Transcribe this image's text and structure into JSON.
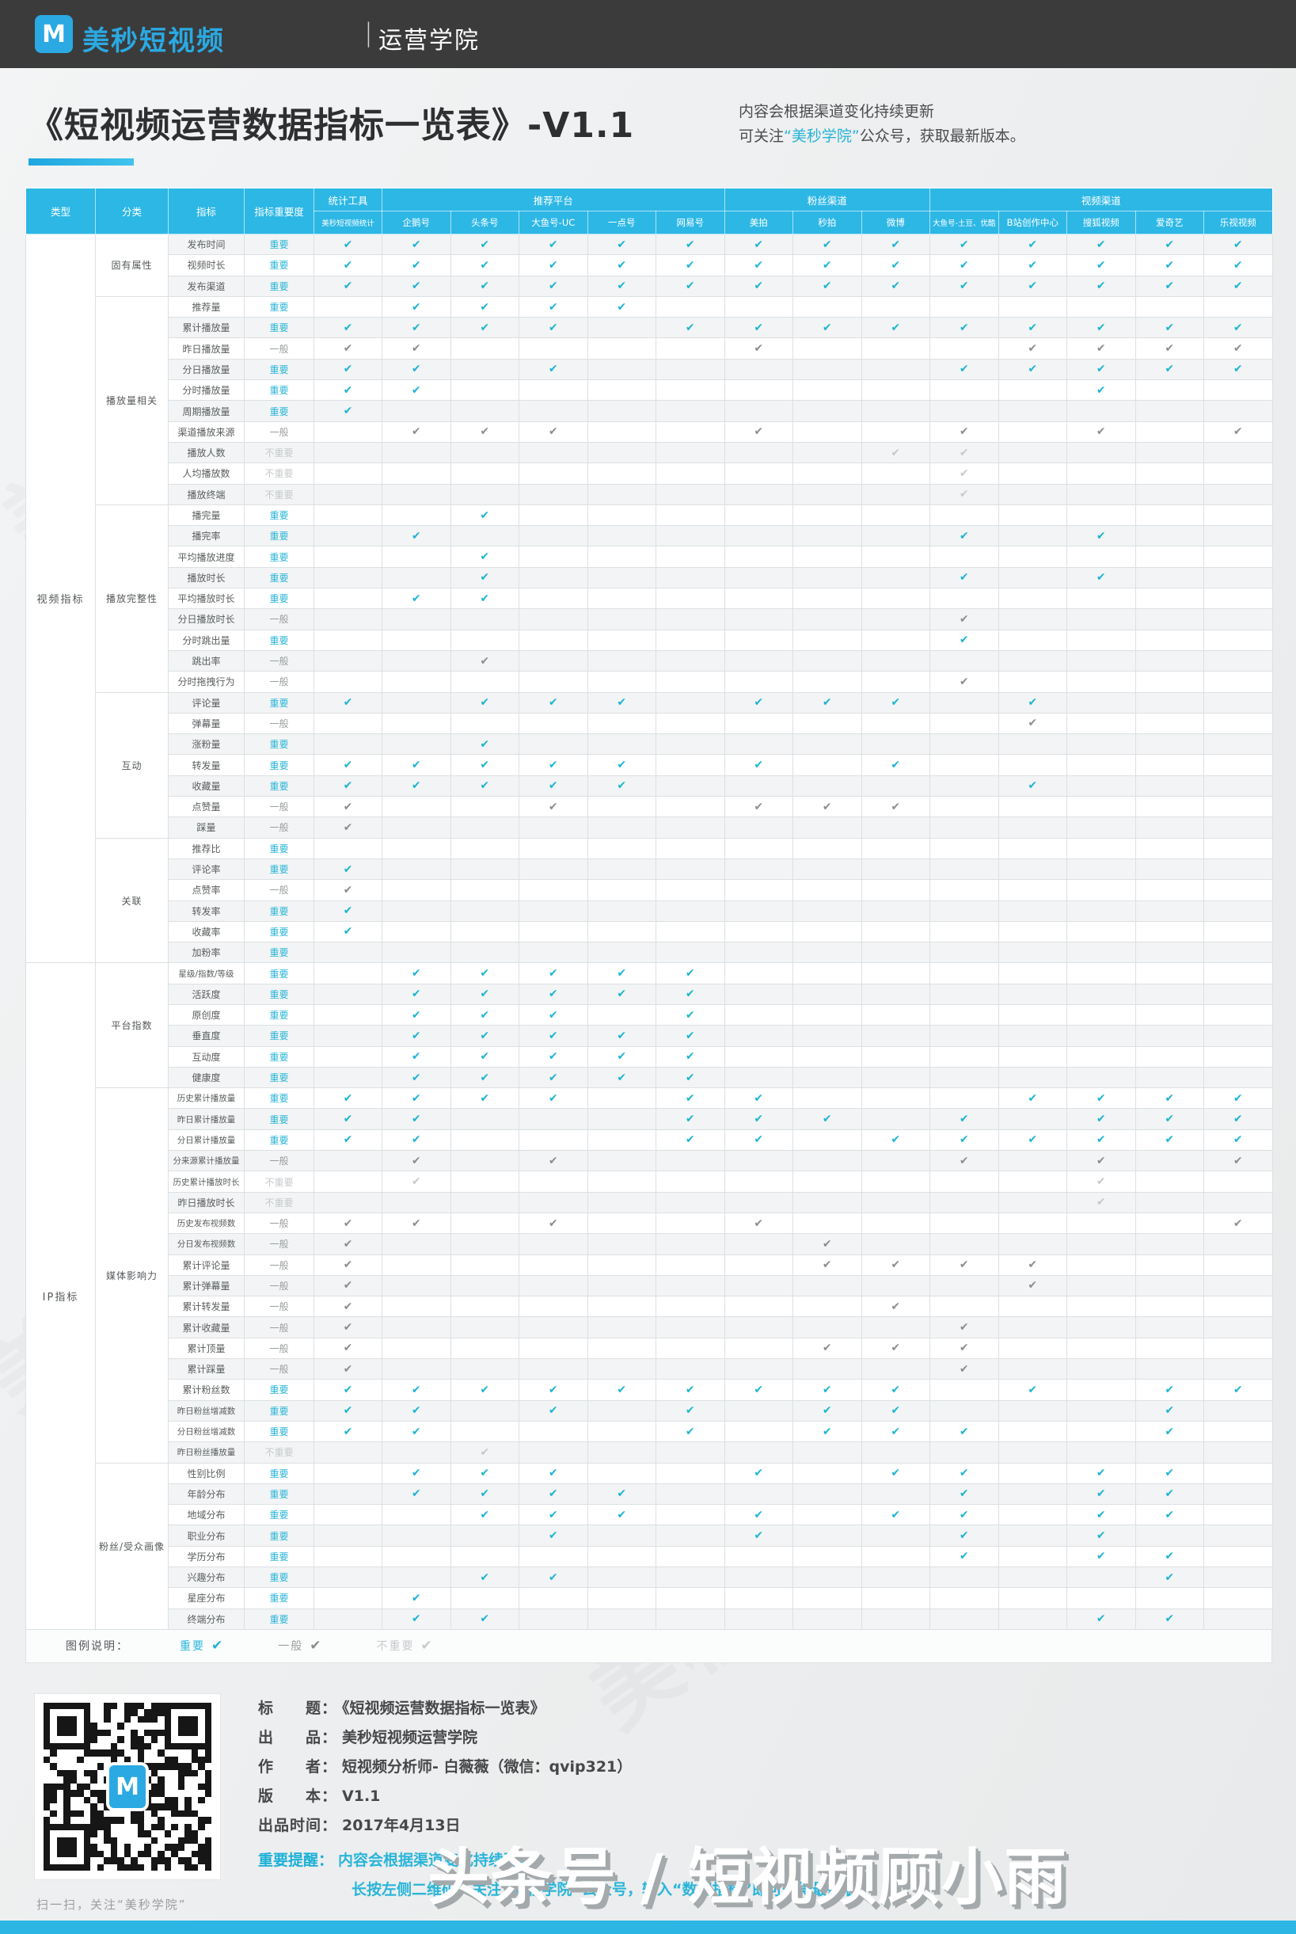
{
  "topbar": {
    "logo_letter": "M",
    "brand": "美秒短视频",
    "separator": "|",
    "suffix": "运营学院"
  },
  "header": {
    "title": "《短视频运营数据指标一览表》-V1.1",
    "note_line1": "内容会根据渠道变化持续更新",
    "note_line2_prefix": "可关注",
    "note_line2_brand": "“美秒学院”",
    "note_line2_suffix": "公众号，获取最新版本。"
  },
  "table": {
    "corner_headers": [
      "类型",
      "分类",
      "指标",
      "指标重要度"
    ],
    "groups": [
      {
        "label": "统计工具",
        "cols": [
          "美秒短视频统计"
        ]
      },
      {
        "label": "推荐平台",
        "cols": [
          "企鹅号",
          "头条号",
          "大鱼号-UC",
          "一点号",
          "网易号"
        ]
      },
      {
        "label": "粉丝渠道",
        "cols": [
          "美拍",
          "秒拍",
          "微博"
        ]
      },
      {
        "label": "视频渠道",
        "cols": [
          "大鱼号-土豆、优酷",
          "B站创作中心",
          "搜狐视频",
          "爱奇艺",
          "乐视视频"
        ]
      }
    ],
    "types": [
      {
        "label": "视频指标",
        "categories": [
          {
            "label": "固有属性",
            "rows": [
              {
                "name": "发布时间",
                "importance": "important",
                "checks": [
                  0,
                  1,
                  2,
                  3,
                  4,
                  5,
                  6,
                  7,
                  8,
                  9,
                  10,
                  11,
                  12,
                  13
                ]
              },
              {
                "name": "视频时长",
                "importance": "important",
                "checks": [
                  0,
                  1,
                  2,
                  3,
                  4,
                  5,
                  6,
                  7,
                  8,
                  9,
                  10,
                  11,
                  12,
                  13
                ]
              },
              {
                "name": "发布渠道",
                "importance": "important",
                "checks": [
                  0,
                  1,
                  2,
                  3,
                  4,
                  5,
                  6,
                  7,
                  8,
                  9,
                  10,
                  11,
                  12,
                  13
                ]
              }
            ]
          },
          {
            "label": "播放量相关",
            "rows": [
              {
                "name": "推荐量",
                "importance": "important",
                "checks": [
                  1,
                  2,
                  3,
                  4
                ]
              },
              {
                "name": "累计播放量",
                "importance": "important",
                "checks": [
                  0,
                  1,
                  2,
                  3,
                  5,
                  6,
                  7,
                  8,
                  9,
                  10,
                  11,
                  12,
                  13
                ]
              },
              {
                "name": "昨日播放量",
                "importance": "normal",
                "checks": [
                  0,
                  1,
                  6,
                  10,
                  11,
                  12,
                  13
                ]
              },
              {
                "name": "分日播放量",
                "importance": "important",
                "checks": [
                  0,
                  1,
                  3,
                  9,
                  10,
                  11,
                  12,
                  13
                ]
              },
              {
                "name": "分时播放量",
                "importance": "important",
                "checks": [
                  0,
                  1,
                  11
                ]
              },
              {
                "name": "周期播放量",
                "importance": "important",
                "checks": [
                  0
                ]
              },
              {
                "name": "渠道播放来源",
                "importance": "normal",
                "checks": [
                  1,
                  2,
                  3,
                  6,
                  9,
                  11,
                  13
                ]
              },
              {
                "name": "播放人数",
                "importance": "unimportant",
                "checks": [
                  8,
                  9
                ]
              },
              {
                "name": "人均播放数",
                "importance": "unimportant",
                "checks": [
                  9
                ]
              },
              {
                "name": "播放终端",
                "importance": "unimportant",
                "checks": [
                  9
                ]
              }
            ]
          },
          {
            "label": "播放完整性",
            "rows": [
              {
                "name": "播完量",
                "importance": "important",
                "checks": [
                  2
                ]
              },
              {
                "name": "播完率",
                "importance": "important",
                "checks": [
                  1,
                  9,
                  11
                ]
              },
              {
                "name": "平均播放进度",
                "importance": "important",
                "checks": [
                  2
                ]
              },
              {
                "name": "播放时长",
                "importance": "important",
                "checks": [
                  2,
                  9,
                  11
                ]
              },
              {
                "name": "平均播放时长",
                "importance": "important",
                "checks": [
                  1,
                  2
                ]
              },
              {
                "name": "分日播放时长",
                "importance": "normal",
                "checks": [
                  9
                ]
              },
              {
                "name": "分时跳出量",
                "importance": "important",
                "checks": [
                  9
                ]
              },
              {
                "name": "跳出率",
                "importance": "normal",
                "checks": [
                  2
                ]
              },
              {
                "name": "分时拖拽行为",
                "importance": "normal",
                "checks": [
                  9
                ]
              }
            ]
          },
          {
            "label": "互动",
            "rows": [
              {
                "name": "评论量",
                "importance": "important",
                "checks": [
                  0,
                  2,
                  3,
                  4,
                  6,
                  7,
                  8,
                  10
                ]
              },
              {
                "name": "弹幕量",
                "importance": "normal",
                "checks": [
                  10
                ]
              },
              {
                "name": "涨粉量",
                "importance": "important",
                "checks": [
                  2
                ]
              },
              {
                "name": "转发量",
                "importance": "important",
                "checks": [
                  0,
                  1,
                  2,
                  3,
                  4,
                  6,
                  8
                ]
              },
              {
                "name": "收藏量",
                "importance": "important",
                "checks": [
                  0,
                  1,
                  2,
                  3,
                  4,
                  10
                ]
              },
              {
                "name": "点赞量",
                "importance": "normal",
                "checks": [
                  0,
                  3,
                  6,
                  7,
                  8
                ]
              },
              {
                "name": "踩量",
                "importance": "normal",
                "checks": [
                  0
                ]
              }
            ]
          },
          {
            "label": "关联",
            "rows": [
              {
                "name": "推荐比",
                "importance": "important",
                "checks": []
              },
              {
                "name": "评论率",
                "importance": "important",
                "checks": [
                  0
                ]
              },
              {
                "name": "点赞率",
                "importance": "normal",
                "checks": [
                  0
                ]
              },
              {
                "name": "转发率",
                "importance": "important",
                "checks": [
                  0
                ]
              },
              {
                "name": "收藏率",
                "importance": "important",
                "checks": [
                  0
                ]
              },
              {
                "name": "加粉率",
                "importance": "important",
                "checks": []
              }
            ]
          }
        ]
      },
      {
        "label": "IP指标",
        "categories": [
          {
            "label": "平台指数",
            "rows": [
              {
                "name": "星级/指数/等级",
                "importance": "important",
                "checks": [
                  1,
                  2,
                  3,
                  4,
                  5
                ]
              },
              {
                "name": "活跃度",
                "importance": "important",
                "checks": [
                  1,
                  2,
                  3,
                  4,
                  5
                ]
              },
              {
                "name": "原创度",
                "importance": "important",
                "checks": [
                  1,
                  2,
                  3,
                  5
                ]
              },
              {
                "name": "垂直度",
                "importance": "important",
                "checks": [
                  1,
                  2,
                  3,
                  4,
                  5
                ]
              },
              {
                "name": "互动度",
                "importance": "important",
                "checks": [
                  1,
                  2,
                  3,
                  4,
                  5
                ]
              },
              {
                "name": "健康度",
                "importance": "important",
                "checks": [
                  1,
                  2,
                  3,
                  4,
                  5
                ]
              }
            ]
          },
          {
            "label": "媒体影响力",
            "rows": [
              {
                "name": "历史累计播放量",
                "importance": "important",
                "checks": [
                  0,
                  1,
                  2,
                  3,
                  5,
                  6,
                  10,
                  11,
                  12,
                  13
                ]
              },
              {
                "name": "昨日累计播放量",
                "importance": "important",
                "checks": [
                  0,
                  1,
                  5,
                  6,
                  7,
                  9,
                  11,
                  12,
                  13
                ]
              },
              {
                "name": "分日累计播放量",
                "importance": "important",
                "checks": [
                  0,
                  1,
                  5,
                  6,
                  8,
                  9,
                  10,
                  11,
                  12,
                  13
                ]
              },
              {
                "name": "分来源累计播放量",
                "importance": "normal",
                "checks": [
                  1,
                  3,
                  9,
                  11,
                  13
                ]
              },
              {
                "name": "历史累计播放时长",
                "importance": "unimportant",
                "checks": [
                  1,
                  11
                ]
              },
              {
                "name": "昨日播放时长",
                "importance": "unimportant",
                "checks": [
                  11
                ]
              },
              {
                "name": "历史发布视频数",
                "importance": "normal",
                "checks": [
                  0,
                  1,
                  3,
                  6,
                  13
                ]
              },
              {
                "name": "分日发布视频数",
                "importance": "normal",
                "checks": [
                  0,
                  7
                ]
              },
              {
                "name": "累计评论量",
                "importance": "normal",
                "checks": [
                  0,
                  7,
                  8,
                  9,
                  10
                ]
              },
              {
                "name": "累计弹幕量",
                "importance": "normal",
                "checks": [
                  0,
                  10
                ]
              },
              {
                "name": "累计转发量",
                "importance": "normal",
                "checks": [
                  0,
                  8
                ]
              },
              {
                "name": "累计收藏量",
                "importance": "normal",
                "checks": [
                  0,
                  9
                ]
              },
              {
                "name": "累计顶量",
                "importance": "normal",
                "checks": [
                  0,
                  7,
                  8,
                  9
                ]
              },
              {
                "name": "累计踩量",
                "importance": "normal",
                "checks": [
                  0,
                  9
                ]
              },
              {
                "name": "累计粉丝数",
                "importance": "important",
                "checks": [
                  0,
                  1,
                  2,
                  3,
                  4,
                  5,
                  6,
                  7,
                  8,
                  10,
                  12,
                  13
                ]
              },
              {
                "name": "昨日粉丝增减数",
                "importance": "important",
                "checks": [
                  0,
                  1,
                  3,
                  5,
                  7,
                  8,
                  12
                ]
              },
              {
                "name": "分日粉丝增减数",
                "importance": "important",
                "checks": [
                  0,
                  1,
                  5,
                  7,
                  8,
                  9,
                  12
                ]
              },
              {
                "name": "昨日粉丝播放量",
                "importance": "unimportant",
                "checks": [
                  2
                ]
              }
            ]
          },
          {
            "label": "粉丝/受众画像",
            "rows": [
              {
                "name": "性别比例",
                "importance": "important",
                "checks": [
                  1,
                  2,
                  3,
                  6,
                  8,
                  9,
                  11,
                  12
                ]
              },
              {
                "name": "年龄分布",
                "importance": "important",
                "checks": [
                  1,
                  2,
                  3,
                  4,
                  9,
                  11,
                  12
                ]
              },
              {
                "name": "地域分布",
                "importance": "important",
                "checks": [
                  2,
                  3,
                  4,
                  6,
                  8,
                  9,
                  11,
                  12
                ]
              },
              {
                "name": "职业分布",
                "importance": "important",
                "checks": [
                  3,
                  6,
                  9,
                  11
                ]
              },
              {
                "name": "学历分布",
                "importance": "important",
                "checks": [
                  9,
                  11,
                  12
                ]
              },
              {
                "name": "兴趣分布",
                "importance": "important",
                "checks": [
                  2,
                  3,
                  12
                ]
              },
              {
                "name": "星座分布",
                "importance": "important",
                "checks": [
                  1
                ]
              },
              {
                "name": "终端分布",
                "importance": "important",
                "checks": [
                  1,
                  2,
                  11,
                  12
                ]
              }
            ]
          }
        ]
      }
    ]
  },
  "legend": {
    "heading": "图例说明：",
    "labels": {
      "important": "重要",
      "normal": "一般",
      "unimportant": "不重要"
    },
    "items": [
      {
        "label": "重要",
        "level": "important"
      },
      {
        "label": "一般",
        "level": "normal"
      },
      {
        "label": "不重要",
        "level": "unimportant"
      }
    ]
  },
  "footer": {
    "credits": [
      {
        "label": "标　　题：",
        "value": "《短视频运营数据指标一览表》"
      },
      {
        "label": "出　　品：",
        "value": "美秒短视频运营学院"
      },
      {
        "label": "作　　者：",
        "value": "短视频分析师- 白薇薇（微信：qvip321）"
      },
      {
        "label": "版　　本：",
        "value": "V1.1"
      },
      {
        "label": "出品时间：",
        "value": "2017年4月13日"
      }
    ],
    "alert": {
      "label": "重要提醒：",
      "line1": "内容会根据渠道变化持续更新",
      "line2": "长按左侧二维码，关注“美秒学院”公众号，输入“数据指标”即可获得最新版。"
    },
    "qr_caption": "扫一扫，关注“美秒学院”",
    "qr_logo_letter": "M"
  },
  "watermark": {
    "big": "头条号 / 短视频顾小雨",
    "ghost": "美秒短视频"
  },
  "colors": {
    "topbar_bg": "#3b3b3b",
    "accent_blue": "#2aa9e2",
    "header_blue": "#2db7e5",
    "important": "#1db5d3",
    "normal": "#8b8e90",
    "unimportant": "#c7cacc",
    "bottom_bar": "#2cb6e4"
  }
}
